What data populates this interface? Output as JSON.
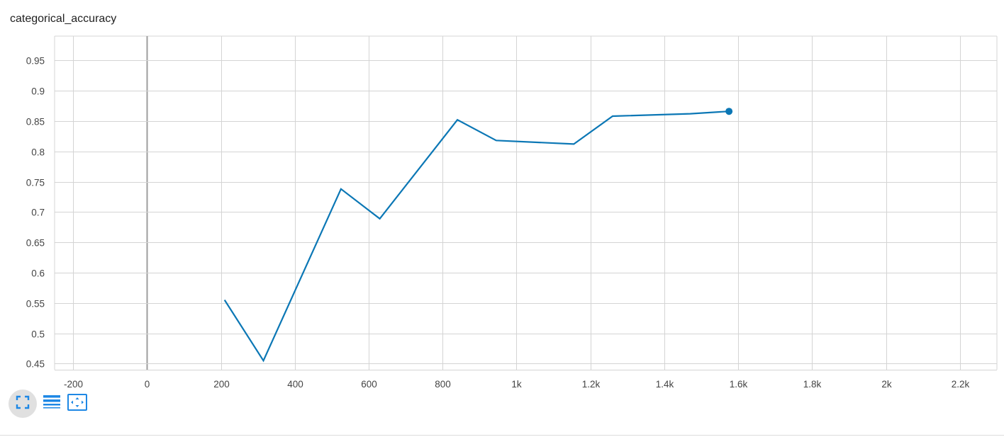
{
  "title": "categorical_accuracy",
  "colors": {
    "series": "#0b77b5",
    "grid": "#d4d4d4",
    "zero_axis": "#9e9e9e",
    "tick_text": "#444444",
    "toolbar_icon": "#1e88e5"
  },
  "toolbar": {
    "icons": [
      "fit-domain-icon",
      "toggle-log-scale-icon",
      "expand-chart-icon"
    ]
  },
  "chart_data": {
    "type": "line",
    "title": "categorical_accuracy",
    "xlabel": "",
    "ylabel": "",
    "xlim": [
      -250,
      2300
    ],
    "ylim": [
      0.44,
      0.99
    ],
    "x_ticks": [
      -200,
      0,
      200,
      400,
      600,
      800,
      1000,
      1200,
      1400,
      1600,
      1800,
      2000,
      2200
    ],
    "x_tick_labels": [
      "-200",
      "0",
      "200",
      "400",
      "600",
      "800",
      "1k",
      "1.2k",
      "1.4k",
      "1.6k",
      "1.8k",
      "2k",
      "2.2k"
    ],
    "y_ticks": [
      0.45,
      0.5,
      0.55,
      0.6,
      0.65,
      0.7,
      0.75,
      0.8,
      0.85,
      0.9,
      0.95
    ],
    "y_tick_labels": [
      "0.45",
      "0.5",
      "0.55",
      "0.6",
      "0.65",
      "0.7",
      "0.75",
      "0.8",
      "0.85",
      "0.9",
      "0.95"
    ],
    "grid": true,
    "series": [
      {
        "x": [
          210,
          315,
          525,
          630,
          840,
          945,
          1155,
          1260,
          1470,
          1575
        ],
        "y": [
          0.555,
          0.455,
          0.738,
          0.689,
          0.852,
          0.818,
          0.812,
          0.858,
          0.862,
          0.866
        ]
      }
    ],
    "highlight_last_point": true
  }
}
